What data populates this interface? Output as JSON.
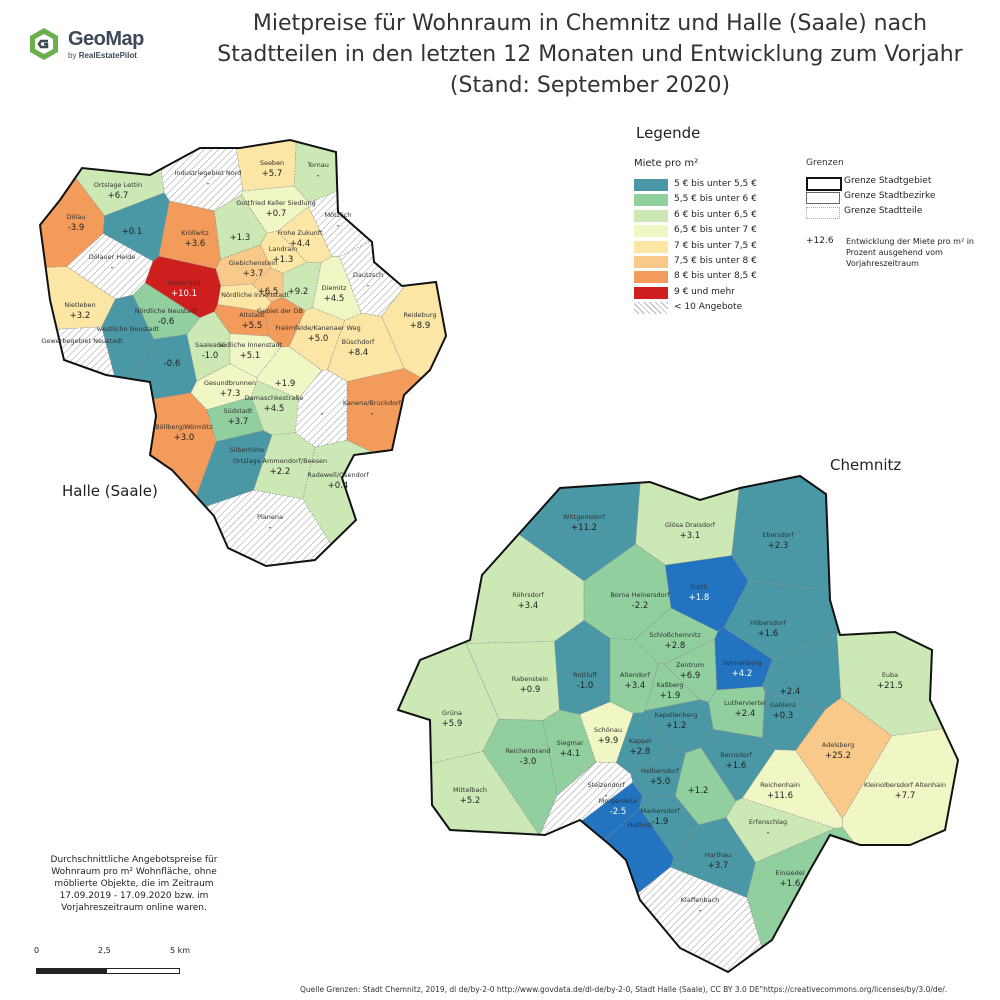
{
  "title_lines": [
    "Mietpreise für Wohnraum in Chemnitz und Halle (Saale) nach",
    "Stadtteilen in den letzten 12 Monaten und Entwicklung zum Vorjahr",
    "(Stand: September 2020)"
  ],
  "logo": {
    "name": "GeoMap",
    "sub_prefix": "by",
    "sub_brand": "RealEstatePilot",
    "icon": "geomap-logo-icon",
    "colors": [
      "#6ab04c",
      "#3d4a56"
    ]
  },
  "legend": {
    "title": "Legende",
    "subtitle": "Miete pro m²",
    "classes": [
      {
        "label": "5 € bis unter 5,5 €",
        "color": "#4a98a6"
      },
      {
        "label": "5,5 € bis unter 6 €",
        "color": "#92cf9e"
      },
      {
        "label": "6 € bis unter 6,5 €",
        "color": "#cce9b5"
      },
      {
        "label": "6,5 € bis unter 7 €",
        "color": "#f0f6c4"
      },
      {
        "label": "7 € bis unter 7,5 €",
        "color": "#fce6a5"
      },
      {
        "label": "7,5 € bis unter 8 €",
        "color": "#f9c98a"
      },
      {
        "label": "8 € bis unter 8,5 €",
        "color": "#f29b5a"
      },
      {
        "label": "9 € und mehr",
        "color": "#cf1e1e"
      },
      {
        "label": "< 10 Angebote",
        "color": "hatch"
      }
    ],
    "boundaries_title": "Grenzen",
    "boundaries": [
      {
        "label": "Grenze Stadtgebiet",
        "style": "thick"
      },
      {
        "label": "Grenze Stadtbezirke",
        "style": "thin"
      },
      {
        "label": "Grenze Stadtteile",
        "style": "dotted"
      }
    ],
    "development_sample": "+12.6",
    "development_text": "Entwicklung der Miete pro m² in Prozent ausgehend vom Vorjahreszeitraum"
  },
  "cities": {
    "halle": {
      "name": "Halle (Saale)",
      "districts": [
        {
          "name": "Seeben",
          "change": "+5.7",
          "class": 4
        },
        {
          "name": "Tornau",
          "change": "-",
          "class": 2
        },
        {
          "name": "Ortslage Lettin",
          "change": "+6.7",
          "class": 2
        },
        {
          "name": "Industriegebiet Nord",
          "change": "-",
          "class": 8
        },
        {
          "name": "Gottfried Keller Siedlung",
          "change": "+0.7",
          "class": 3
        },
        {
          "name": "Mötzlich",
          "change": "-",
          "class": 8
        },
        {
          "name": "Dölau",
          "change": "-3.9",
          "class": 6
        },
        {
          "name": "",
          "change": "+0.1",
          "class": 0
        },
        {
          "name": "Kröllwitz",
          "change": "+3.6",
          "class": 6
        },
        {
          "name": "",
          "change": "+1.3",
          "class": 2
        },
        {
          "name": "Frohe Zukunft",
          "change": "+4.4",
          "class": 4
        },
        {
          "name": "Landrain",
          "change": "+1.3",
          "class": 4
        },
        {
          "name": "Dölauer Heide",
          "change": "-",
          "class": 8
        },
        {
          "name": "Giebichenstein",
          "change": "+3.7",
          "class": 5
        },
        {
          "name": "Heide Süd",
          "change": "+10.1",
          "class": 7
        },
        {
          "name": "",
          "change": "+6.5",
          "class": 5
        },
        {
          "name": "",
          "change": "+9.2",
          "class": 2
        },
        {
          "name": "Diemitz",
          "change": "+4.5",
          "class": 3
        },
        {
          "name": "Dautzsch",
          "change": "-",
          "class": 8
        },
        {
          "name": "Nördliche Innenstadt",
          "change": "",
          "class": 4
        },
        {
          "name": "Nietleben",
          "change": "+3.2",
          "class": 4
        },
        {
          "name": "Nördliche Neustadt",
          "change": "-0.6",
          "class": 1
        },
        {
          "name": "Altstadt",
          "change": "+5.5",
          "class": 6
        },
        {
          "name": "Gebiet der DB",
          "change": "",
          "class": 6
        },
        {
          "name": "Freiimfelde/Kanenaer Weg",
          "change": "+5.0",
          "class": 4
        },
        {
          "name": "Reideburg",
          "change": "+8.9",
          "class": 4
        },
        {
          "name": "westliche Neustadt",
          "change": "",
          "class": 0
        },
        {
          "name": "Gewerbegebiet Neustadt",
          "change": "",
          "class": 8
        },
        {
          "name": "",
          "change": "-0.6",
          "class": 0
        },
        {
          "name": "Saaleaue",
          "change": "-1.0",
          "class": 2
        },
        {
          "name": "Südliche Innenstadt",
          "change": "+5.1",
          "class": 3
        },
        {
          "name": "Büschdorf",
          "change": "+8.4",
          "class": 4
        },
        {
          "name": "",
          "change": "+1.9",
          "class": 3
        },
        {
          "name": "Gesundbrunnen",
          "change": "+7.3",
          "class": 3
        },
        {
          "name": "Kanena/Bruckdorf",
          "change": "-",
          "class": 6
        },
        {
          "name": "Damaschkestraße",
          "change": "+4.5",
          "class": 2
        },
        {
          "name": "Südstadt",
          "change": "+3.7",
          "class": 1
        },
        {
          "name": "",
          "change": "-",
          "class": 8
        },
        {
          "name": "Böllberg/Wörmlitz",
          "change": "+3.0",
          "class": 6
        },
        {
          "name": "Silberhöhe",
          "change": "",
          "class": 0
        },
        {
          "name": "Ortslage Ammendorf/Beesen",
          "change": "+2.2",
          "class": 2
        },
        {
          "name": "Radewell/Osendorf",
          "change": "+0.4",
          "class": 2
        },
        {
          "name": "Planena",
          "change": "-",
          "class": 8
        }
      ]
    },
    "chemnitz": {
      "name": "Chemnitz",
      "districts": [
        {
          "name": "Wittgensdorf",
          "change": "+11.2",
          "class": 0
        },
        {
          "name": "Glösa Draisdorf",
          "change": "+3.1",
          "class": 2
        },
        {
          "name": "Ebersdorf",
          "change": "+2.3",
          "class": 0
        },
        {
          "name": "Röhrsdorf",
          "change": "+3.4",
          "class": 2
        },
        {
          "name": "Borna Heinersdorf",
          "change": "-2.2",
          "class": 1
        },
        {
          "name": "Furth",
          "change": "+1.8",
          "class": 9
        },
        {
          "name": "Hilbersdorf",
          "change": "+1.6",
          "class": 0
        },
        {
          "name": "Schloßchemnitz",
          "change": "+2.8",
          "class": 1
        },
        {
          "name": "Rabenstein",
          "change": "+0.9",
          "class": 2
        },
        {
          "name": "Rottluff",
          "change": "-1.0",
          "class": 0
        },
        {
          "name": "Altendorf",
          "change": "+3.4",
          "class": 1
        },
        {
          "name": "Zentrum",
          "change": "+6.9",
          "class": 1
        },
        {
          "name": "Sonnenberg",
          "change": "+4.2",
          "class": 9
        },
        {
          "name": "",
          "change": "+2.4",
          "class": 0
        },
        {
          "name": "Euba",
          "change": "+21.5",
          "class": 2
        },
        {
          "name": "Kaßberg",
          "change": "+1.9",
          "class": 1
        },
        {
          "name": "Lutherviertel",
          "change": "+2.4",
          "class": 1
        },
        {
          "name": "Gablenz",
          "change": "+0.3",
          "class": 0
        },
        {
          "name": "Grüna",
          "change": "+5.9",
          "class": 2
        },
        {
          "name": "Kapellenberg",
          "change": "+1.2",
          "class": 0
        },
        {
          "name": "Schönau",
          "change": "+9.9",
          "class": 3
        },
        {
          "name": "Reichenbrand",
          "change": "-3.0",
          "class": 1
        },
        {
          "name": "Siegmar",
          "change": "+4.1",
          "class": 1
        },
        {
          "name": "Kappel",
          "change": "+2.8",
          "class": 0
        },
        {
          "name": "Bernsdorf",
          "change": "+1.6",
          "class": 0
        },
        {
          "name": "Adelsberg",
          "change": "+25.2",
          "class": 5
        },
        {
          "name": "Helbersdorf",
          "change": "+5.0",
          "class": 0
        },
        {
          "name": "",
          "change": "+1.2",
          "class": 1
        },
        {
          "name": "Reichenhain",
          "change": "+11.6",
          "class": 3
        },
        {
          "name": "Kleinolbersdorf Altenhain",
          "change": "+7.7",
          "class": 3
        },
        {
          "name": "Mittelbach",
          "change": "+5.2",
          "class": 2
        },
        {
          "name": "Stelzendorf",
          "change": "-",
          "class": 8
        },
        {
          "name": "Morgenleite",
          "change": "-2.5",
          "class": 9
        },
        {
          "name": "Markersdorf",
          "change": "-1.9",
          "class": 0
        },
        {
          "name": "Hutholz",
          "change": "",
          "class": 9
        },
        {
          "name": "Erfenschlag",
          "change": "-",
          "class": 2
        },
        {
          "name": "Harthau",
          "change": "+3.7",
          "class": 0
        },
        {
          "name": "Einsiedel",
          "change": "+1.6",
          "class": 1
        },
        {
          "name": "Klaffenbach",
          "change": "-",
          "class": 8
        }
      ]
    }
  },
  "note": "Durchschnittliche Angebotspreise für Wohnraum pro m² Wohnfläche, ohne möblierte Objekte, die im Zeitraum 17.09.2019 - 17.09.2020 bzw. im Vorjahreszeitraum online waren.",
  "scale": {
    "ticks": [
      "0",
      "2,5",
      "5 km"
    ]
  },
  "source": "Quelle Grenzen: Stadt Chemnitz, 2019, dl de/by-2-0 http://www.govdata.de/dl-de/by-2-0, Stadt Halle (Saale), CC BY 3.0 DE\"https://creativecommons.org/licenses/by/3.0/de/."
}
